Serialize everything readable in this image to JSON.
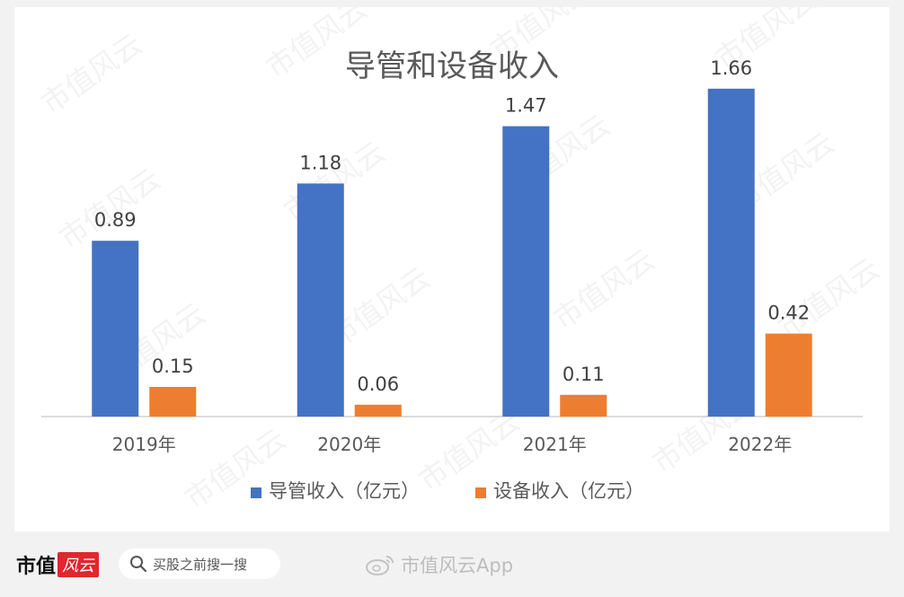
{
  "watermark": "市值风云",
  "chart_data": {
    "type": "bar",
    "title": "导管和设备收入",
    "categories": [
      "2019年",
      "2020年",
      "2021年",
      "2022年"
    ],
    "series": [
      {
        "name": "导管收入（亿元）",
        "values": [
          0.89,
          1.18,
          1.47,
          1.66
        ],
        "color": "#4472c4"
      },
      {
        "name": "设备收入（亿元）",
        "values": [
          0.15,
          0.06,
          0.11,
          0.42
        ],
        "color": "#ed7d31"
      }
    ],
    "ylim": [
      0,
      1.8
    ],
    "grid": false,
    "legend_position": "bottom",
    "data_labels": true
  },
  "footer": {
    "brand": "市值",
    "brand_logo": "风云",
    "search_placeholder": "买股之前搜一搜",
    "search_icon": "search-icon",
    "app_label": "市值风云App",
    "app_icon": "weibo-icon"
  }
}
